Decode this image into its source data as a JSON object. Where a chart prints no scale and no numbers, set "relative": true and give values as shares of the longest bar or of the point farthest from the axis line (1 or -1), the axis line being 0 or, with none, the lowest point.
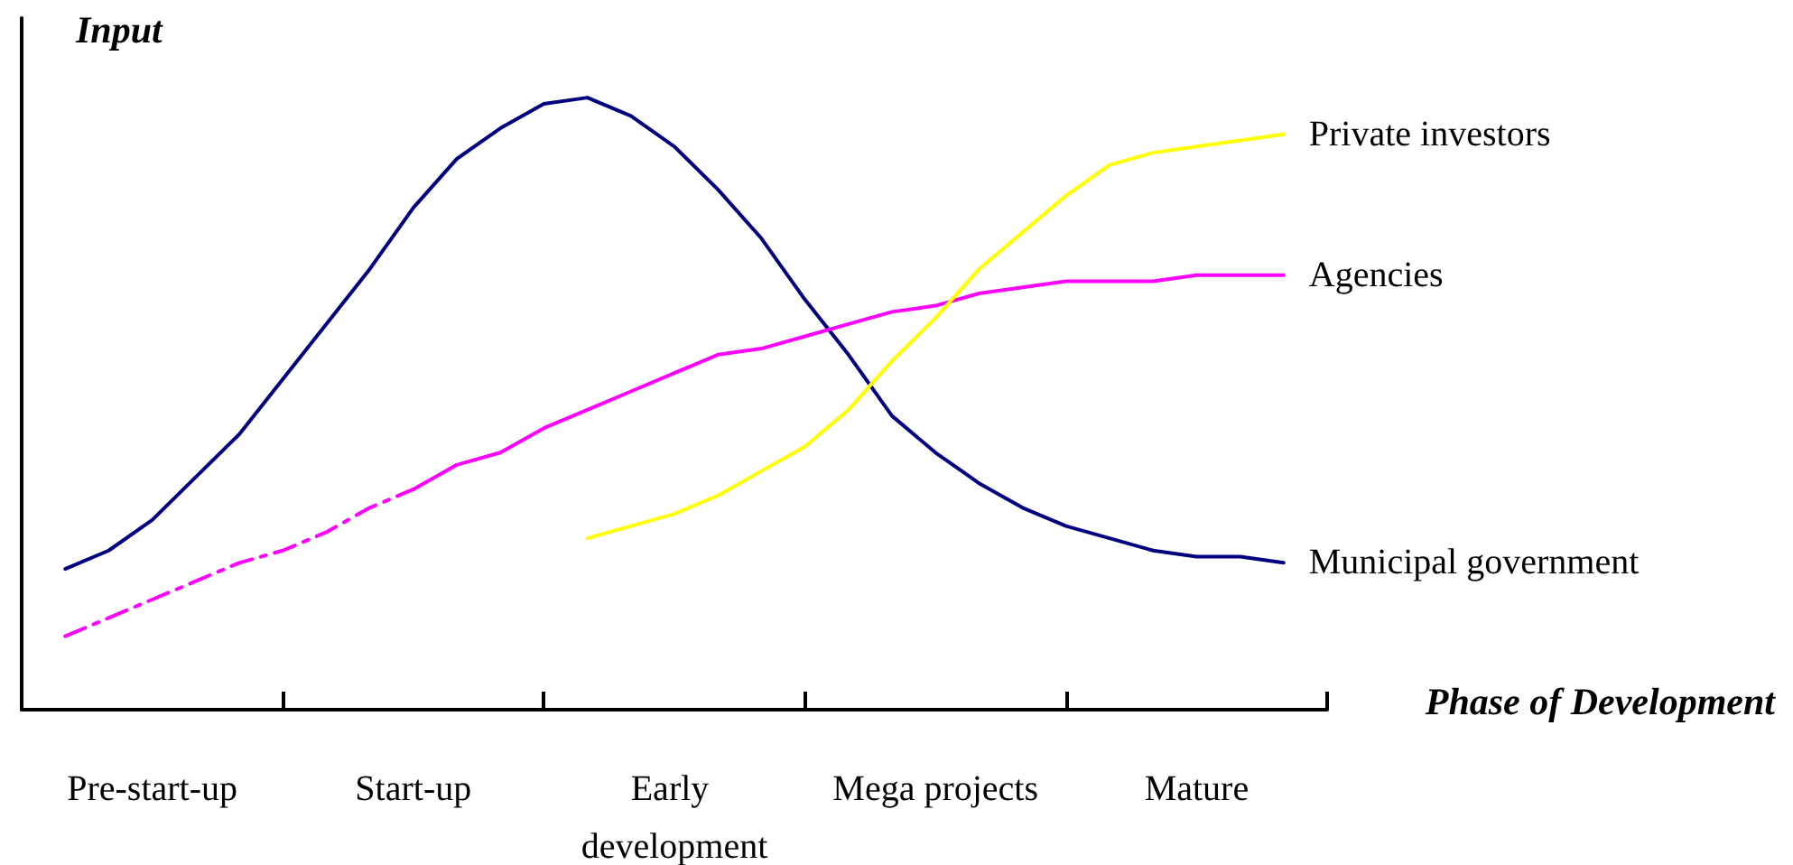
{
  "chart_data": {
    "type": "line",
    "relative": true,
    "xlabel": "Phase of Development",
    "ylabel": "Input",
    "legend": false,
    "marker": "none",
    "grid": false,
    "categories": [
      null,
      null,
      null,
      "Pre-start-up",
      null,
      null,
      null,
      null,
      null,
      "Start-up",
      null,
      null,
      null,
      null,
      null,
      "Early development",
      null,
      null,
      null,
      null,
      null,
      "Mega projects",
      null,
      null,
      null,
      null,
      null,
      "Mature",
      null,
      null,
      null
    ],
    "series": [
      {
        "name": "Municipal government",
        "color": "#000080",
        "values": [
          null,
          0.23,
          0.26,
          0.31,
          0.38,
          0.45,
          0.54,
          0.63,
          0.72,
          0.82,
          0.9,
          0.95,
          0.99,
          1.0,
          0.97,
          0.92,
          0.85,
          0.77,
          0.67,
          0.58,
          0.48,
          0.42,
          0.37,
          0.33,
          0.3,
          0.28,
          0.26,
          0.25,
          0.25,
          0.24,
          null
        ]
      },
      {
        "color": "#ff00ff",
        "line_style": "dashed",
        "values": [
          null,
          0.12,
          0.15,
          0.18,
          0.21,
          0.24,
          0.26,
          0.29,
          0.33,
          0.36,
          null,
          null,
          null,
          null,
          null,
          null,
          null,
          null,
          null,
          null,
          null,
          null,
          null,
          null,
          null,
          null,
          null,
          null,
          null,
          null,
          null
        ]
      },
      {
        "name": "Agencies",
        "color": "#ff00ff",
        "values": [
          null,
          null,
          null,
          null,
          null,
          null,
          null,
          null,
          null,
          0.36,
          0.4,
          0.42,
          0.46,
          0.49,
          0.52,
          0.55,
          0.58,
          0.59,
          0.61,
          0.63,
          0.65,
          0.66,
          0.68,
          0.69,
          0.7,
          0.7,
          0.7,
          0.71,
          0.71,
          0.71,
          null
        ]
      },
      {
        "name": "Private investors",
        "color": "#ffff00",
        "values": [
          null,
          null,
          null,
          null,
          null,
          null,
          null,
          null,
          null,
          null,
          null,
          null,
          null,
          0.28,
          0.3,
          0.32,
          0.35,
          0.39,
          0.43,
          0.49,
          0.57,
          0.64,
          0.72,
          0.78,
          0.84,
          0.89,
          0.91,
          0.92,
          0.93,
          0.94,
          null
        ]
      }
    ]
  }
}
